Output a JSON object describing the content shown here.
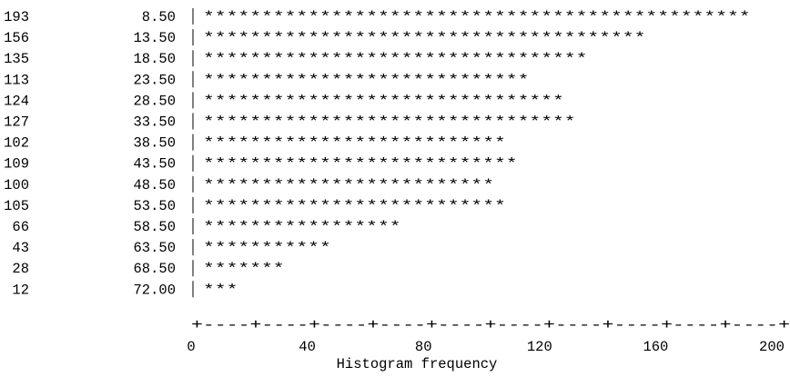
{
  "chart_data": {
    "type": "bar",
    "orientation": "horizontal",
    "render_style": "ascii-text",
    "categories": [
      "8.50",
      "13.50",
      "18.50",
      "23.50",
      "28.50",
      "33.50",
      "38.50",
      "43.50",
      "48.50",
      "53.50",
      "58.50",
      "63.50",
      "68.50",
      "72.00"
    ],
    "counts": [
      "193",
      "156",
      "135",
      "113",
      "124",
      "127",
      "102",
      "109",
      "100",
      "105",
      "66",
      "43",
      "28",
      "12"
    ],
    "values": [
      193,
      156,
      135,
      113,
      124,
      127,
      102,
      109,
      100,
      105,
      66,
      43,
      28,
      12
    ],
    "star_counts": [
      47,
      38,
      33,
      28,
      31,
      32,
      26,
      27,
      25,
      26,
      17,
      11,
      7,
      3
    ],
    "bar_char": "*",
    "axis": {
      "ruler": "+----+----+----+----+----+----+----+----+----+----+",
      "ticks": [
        "0",
        "40",
        "80",
        "120",
        "160",
        "200"
      ],
      "xlim": [
        0,
        200
      ]
    },
    "xlabel": "Histogram frequency",
    "title": "",
    "ylabel": ""
  }
}
